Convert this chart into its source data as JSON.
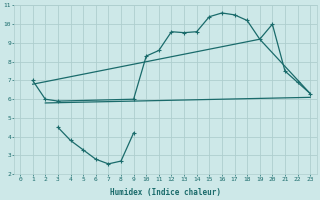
{
  "bg_color": "#cde8e8",
  "grid_color": "#aecece",
  "line_color": "#1a6b6b",
  "xlabel": "Humidex (Indice chaleur)",
  "xlim": [
    -0.5,
    23.5
  ],
  "ylim": [
    2,
    11
  ],
  "xticks": [
    0,
    1,
    2,
    3,
    4,
    5,
    6,
    7,
    8,
    9,
    10,
    11,
    12,
    13,
    14,
    15,
    16,
    17,
    18,
    19,
    20,
    21,
    22,
    23
  ],
  "yticks": [
    2,
    3,
    4,
    5,
    6,
    7,
    8,
    9,
    10,
    11
  ],
  "line1_x": [
    1,
    2,
    3,
    9,
    10,
    11,
    12,
    13,
    14,
    15,
    16,
    17,
    18,
    19,
    20,
    21,
    22,
    23
  ],
  "line1_y": [
    7.0,
    6.0,
    5.9,
    6.0,
    8.3,
    8.6,
    9.6,
    9.55,
    9.6,
    10.4,
    10.6,
    10.5,
    10.2,
    9.2,
    10.0,
    7.5,
    6.9,
    6.3
  ],
  "line2_x": [
    1,
    19,
    23
  ],
  "line2_y": [
    6.8,
    9.2,
    6.3
  ],
  "line3_x": [
    2,
    23
  ],
  "line3_y": [
    5.8,
    6.1
  ],
  "line4_x": [
    3,
    4,
    5,
    6,
    7,
    8,
    9
  ],
  "line4_y": [
    4.5,
    3.8,
    3.3,
    2.8,
    2.55,
    2.7,
    4.2
  ]
}
